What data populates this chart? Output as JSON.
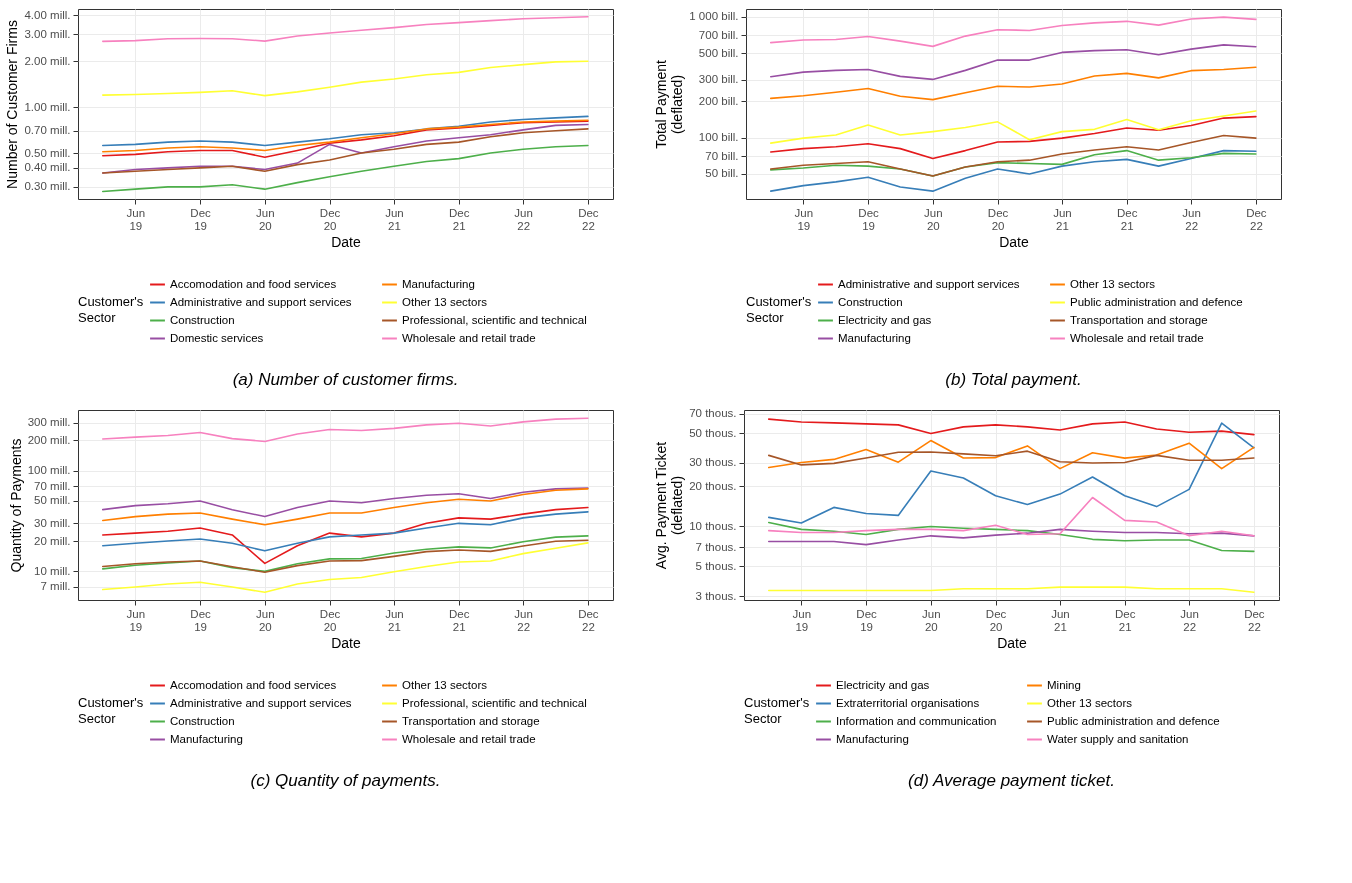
{
  "chart_data": [
    {
      "type": "line",
      "title": "(a) Number of customer firms.",
      "xlabel": "Date",
      "ylabel": "Number of Customer Firms",
      "legend_title": "Customer's\nSector",
      "log": "y",
      "grid": true,
      "legend": "bottom",
      "x": [
        "2019-03",
        "2019-06",
        "2019-09",
        "2019-12",
        "2020-03",
        "2020-06",
        "2020-09",
        "2020-12",
        "2021-03",
        "2021-06",
        "2021-09",
        "2021-12",
        "2022-03",
        "2022-06",
        "2022-09",
        "2022-12"
      ],
      "xlim": [
        "2018-12-21",
        "2023-02-10"
      ],
      "xticks": [
        {
          "value": "2019-06",
          "label": "Jun 19"
        },
        {
          "value": "2019-12",
          "label": "Dec 19"
        },
        {
          "value": "2020-06",
          "label": "Jun 20"
        },
        {
          "value": "2020-12",
          "label": "Dec 20"
        },
        {
          "value": "2021-06",
          "label": "Jun 21"
        },
        {
          "value": "2021-12",
          "label": "Dec 21"
        },
        {
          "value": "2022-06",
          "label": "Jun 22"
        },
        {
          "value": "2022-12",
          "label": "Dec 22"
        }
      ],
      "ylim": [
        0.25,
        4.4
      ],
      "yticks": [
        {
          "value": 0.3,
          "label": "0.30 mill."
        },
        {
          "value": 0.4,
          "label": "0.40 mill."
        },
        {
          "value": 0.5,
          "label": "0.50 mill."
        },
        {
          "value": 0.7,
          "label": "0.70 mill."
        },
        {
          "value": 1,
          "label": "1.00 mill."
        },
        {
          "value": 2,
          "label": "2.00 mill."
        },
        {
          "value": 3,
          "label": "3.00 mill."
        },
        {
          "value": 4,
          "label": "4.00 mill."
        }
      ],
      "series": [
        {
          "name": "Accomodation and food services",
          "color": "#e41a1c",
          "values": [
            0.48,
            0.49,
            0.51,
            0.52,
            0.52,
            0.47,
            0.52,
            0.58,
            0.61,
            0.65,
            0.71,
            0.73,
            0.76,
            0.79,
            0.8,
            0.81
          ]
        },
        {
          "name": "Administrative and support services",
          "color": "#377eb8",
          "values": [
            0.56,
            0.57,
            0.59,
            0.6,
            0.59,
            0.56,
            0.59,
            0.62,
            0.66,
            0.68,
            0.72,
            0.75,
            0.8,
            0.83,
            0.85,
            0.87
          ]
        },
        {
          "name": "Construction",
          "color": "#4daf4a",
          "values": [
            0.28,
            0.29,
            0.3,
            0.3,
            0.31,
            0.29,
            0.32,
            0.35,
            0.38,
            0.41,
            0.44,
            0.46,
            0.5,
            0.53,
            0.55,
            0.56
          ]
        },
        {
          "name": "Domestic services",
          "color": "#984ea3",
          "values": [
            0.37,
            0.39,
            0.4,
            0.41,
            0.41,
            0.39,
            0.43,
            0.57,
            0.5,
            0.55,
            0.6,
            0.63,
            0.66,
            0.71,
            0.76,
            0.77
          ]
        },
        {
          "name": "Manufacturing",
          "color": "#ff7f00",
          "values": [
            0.51,
            0.52,
            0.54,
            0.55,
            0.54,
            0.52,
            0.56,
            0.59,
            0.63,
            0.67,
            0.72,
            0.74,
            0.77,
            0.8,
            0.81,
            0.82
          ]
        },
        {
          "name": "Other 13 sectors",
          "color": "#ffff33",
          "values": [
            1.2,
            1.21,
            1.23,
            1.25,
            1.28,
            1.19,
            1.26,
            1.35,
            1.46,
            1.53,
            1.63,
            1.69,
            1.82,
            1.9,
            1.98,
            2.0
          ]
        },
        {
          "name": "Professional, scientific and technical",
          "color": "#a65628",
          "values": [
            0.37,
            0.38,
            0.39,
            0.4,
            0.41,
            0.38,
            0.42,
            0.45,
            0.5,
            0.53,
            0.57,
            0.59,
            0.64,
            0.68,
            0.7,
            0.72
          ]
        },
        {
          "name": "Wholesale and retail trade",
          "color": "#f781bf",
          "values": [
            2.7,
            2.73,
            2.81,
            2.82,
            2.81,
            2.71,
            2.93,
            3.06,
            3.19,
            3.32,
            3.48,
            3.58,
            3.69,
            3.8,
            3.86,
            3.91
          ]
        }
      ]
    },
    {
      "type": "line",
      "title": "(b) Total payment.",
      "xlabel": "Date",
      "ylabel": "Total Payment\n(deflated)",
      "legend_title": "Customer's\nSector",
      "log": "y",
      "grid": true,
      "legend": "bottom",
      "x": [
        "2019-03",
        "2019-06",
        "2019-09",
        "2019-12",
        "2020-03",
        "2020-06",
        "2020-09",
        "2020-12",
        "2021-03",
        "2021-06",
        "2021-09",
        "2021-12",
        "2022-03",
        "2022-06",
        "2022-09",
        "2022-12"
      ],
      "xlim": [
        "2018-12-21",
        "2023-02-10"
      ],
      "xticks": [
        {
          "value": "2019-06",
          "label": "Jun 19"
        },
        {
          "value": "2019-12",
          "label": "Dec 19"
        },
        {
          "value": "2020-06",
          "label": "Jun 20"
        },
        {
          "value": "2020-12",
          "label": "Dec 20"
        },
        {
          "value": "2021-06",
          "label": "Jun 21"
        },
        {
          "value": "2021-12",
          "label": "Dec 21"
        },
        {
          "value": "2022-06",
          "label": "Jun 22"
        },
        {
          "value": "2022-12",
          "label": "Dec 22"
        }
      ],
      "ylim": [
        31,
        1160
      ],
      "yticks": [
        {
          "value": 50,
          "label": "50 bill."
        },
        {
          "value": 70,
          "label": "70 bill."
        },
        {
          "value": 100,
          "label": "100 bill."
        },
        {
          "value": 200,
          "label": "200 bill."
        },
        {
          "value": 300,
          "label": "300 bill."
        },
        {
          "value": 500,
          "label": "500 bill."
        },
        {
          "value": 700,
          "label": "700 bill."
        },
        {
          "value": 1000,
          "label": "1 000 bill."
        }
      ],
      "series": [
        {
          "name": "Administrative and support services",
          "color": "#e41a1c",
          "values": [
            76,
            81,
            84,
            89,
            81,
            67,
            78,
            92,
            93,
            99,
            108,
            120,
            115,
            126,
            145,
            149
          ]
        },
        {
          "name": "Construction",
          "color": "#377eb8",
          "values": [
            36,
            40,
            43,
            47,
            39,
            36,
            46,
            55,
            50,
            58,
            63,
            66,
            58,
            67,
            78,
            77
          ]
        },
        {
          "name": "Electricity and gas",
          "color": "#4daf4a",
          "values": [
            54,
            56,
            59,
            58,
            55,
            48,
            57,
            62,
            61,
            60,
            72,
            78,
            65,
            68,
            74,
            73
          ]
        },
        {
          "name": "Manufacturing",
          "color": "#984ea3",
          "values": [
            319,
            348,
            360,
            366,
            321,
            303,
            360,
            438,
            438,
            507,
            525,
            533,
            485,
            540,
            585,
            565
          ]
        },
        {
          "name": "Other 13 sectors",
          "color": "#ff7f00",
          "values": [
            211,
            222,
            237,
            255,
            220,
            206,
            235,
            266,
            262,
            278,
            323,
            340,
            312,
            358,
            366,
            382
          ]
        },
        {
          "name": "Public administration and defence",
          "color": "#ffff33",
          "values": [
            90,
            99,
            105,
            127,
            105,
            112,
            121,
            135,
            96,
            112,
            117,
            141,
            116,
            138,
            151,
            166
          ]
        },
        {
          "name": "Transportation and storage",
          "color": "#a65628",
          "values": [
            55,
            59,
            61,
            63,
            55,
            48,
            57,
            63,
            65,
            73,
            79,
            84,
            79,
            91,
            104,
            99
          ]
        },
        {
          "name": "Wholesale and retail trade",
          "color": "#f781bf",
          "values": [
            611,
            643,
            648,
            687,
            629,
            569,
            692,
            782,
            771,
            847,
            891,
            917,
            853,
            958,
            993,
            951
          ]
        }
      ]
    },
    {
      "type": "line",
      "title": "(c) Quantity of payments.",
      "xlabel": "Date",
      "ylabel": "Quantity of Payments",
      "legend_title": "Customer's\nSector",
      "log": "y",
      "grid": true,
      "legend": "bottom",
      "x": [
        "2019-03",
        "2019-06",
        "2019-09",
        "2019-12",
        "2020-03",
        "2020-06",
        "2020-09",
        "2020-12",
        "2021-03",
        "2021-06",
        "2021-09",
        "2021-12",
        "2022-03",
        "2022-06",
        "2022-09",
        "2022-12"
      ],
      "xlim": [
        "2018-12-21",
        "2023-02-10"
      ],
      "xticks": [
        {
          "value": "2019-06",
          "label": "Jun 19"
        },
        {
          "value": "2019-12",
          "label": "Dec 19"
        },
        {
          "value": "2020-06",
          "label": "Jun 20"
        },
        {
          "value": "2020-12",
          "label": "Dec 20"
        },
        {
          "value": "2021-06",
          "label": "Jun 21"
        },
        {
          "value": "2021-12",
          "label": "Dec 21"
        },
        {
          "value": "2022-06",
          "label": "Jun 22"
        },
        {
          "value": "2022-12",
          "label": "Dec 22"
        }
      ],
      "ylim": [
        5.2,
        400
      ],
      "yticks": [
        {
          "value": 7,
          "label": "7 mill."
        },
        {
          "value": 10,
          "label": "10 mill."
        },
        {
          "value": 20,
          "label": "20 mill."
        },
        {
          "value": 30,
          "label": "30 mill."
        },
        {
          "value": 50,
          "label": "50 mill."
        },
        {
          "value": 70,
          "label": "70 mill."
        },
        {
          "value": 100,
          "label": "100 mill."
        },
        {
          "value": 200,
          "label": "200 mill."
        },
        {
          "value": 300,
          "label": "300 mill."
        }
      ],
      "series": [
        {
          "name": "Accomodation and food services",
          "color": "#e41a1c",
          "values": [
            23,
            24,
            25,
            27,
            23,
            12,
            18,
            24,
            22,
            24,
            30,
            34,
            33,
            37,
            41,
            43
          ]
        },
        {
          "name": "Administrative and support services",
          "color": "#377eb8",
          "values": [
            18,
            19,
            20,
            21,
            19,
            16,
            19,
            22,
            23,
            24,
            27,
            30,
            29,
            34,
            37,
            39
          ]
        },
        {
          "name": "Construction",
          "color": "#4daf4a",
          "values": [
            10.6,
            11.5,
            12.1,
            12.7,
            10.9,
            10.0,
            11.9,
            13.3,
            13.4,
            15.2,
            16.6,
            17.5,
            17.1,
            19.7,
            21.9,
            22.5
          ]
        },
        {
          "name": "Manufacturing",
          "color": "#984ea3",
          "values": [
            41,
            45,
            47,
            50,
            41,
            35,
            43,
            50,
            48,
            53,
            57,
            59,
            53,
            61,
            66,
            67
          ]
        },
        {
          "name": "Other 13 sectors",
          "color": "#ff7f00",
          "values": [
            32,
            35,
            37,
            38,
            33,
            29,
            33,
            38,
            38,
            43,
            48,
            52,
            50,
            58,
            64,
            66
          ]
        },
        {
          "name": "Professional, scientific and technical",
          "color": "#ffff33",
          "values": [
            6.6,
            7.0,
            7.5,
            7.8,
            7.0,
            6.2,
            7.5,
            8.3,
            8.7,
            9.9,
            11.2,
            12.4,
            12.7,
            15.0,
            17.0,
            19.2
          ]
        },
        {
          "name": "Transportation and storage",
          "color": "#a65628",
          "values": [
            11.2,
            11.9,
            12.4,
            12.7,
            11.1,
            9.8,
            11.4,
            12.7,
            12.8,
            14.1,
            15.7,
            16.3,
            15.8,
            17.9,
            19.9,
            20.4
          ]
        },
        {
          "name": "Wholesale and retail trade",
          "color": "#f781bf",
          "values": [
            206,
            215,
            223,
            239,
            208,
            195,
            231,
            256,
            250,
            263,
            285,
            295,
            277,
            305,
            325,
            331
          ]
        }
      ]
    },
    {
      "type": "line",
      "title": "(d) Average payment ticket.",
      "xlabel": "Date",
      "ylabel": "Avg. Payment Ticket\n(deflated)",
      "legend_title": "Customer's\nSector",
      "log": "y",
      "grid": true,
      "legend": "bottom",
      "x": [
        "2019-03",
        "2019-06",
        "2019-09",
        "2019-12",
        "2020-03",
        "2020-06",
        "2020-09",
        "2020-12",
        "2021-03",
        "2021-06",
        "2021-09",
        "2021-12",
        "2022-03",
        "2022-06",
        "2022-09",
        "2022-12"
      ],
      "xlim": [
        "2018-12-21",
        "2023-02-10"
      ],
      "xticks": [
        {
          "value": "2019-06",
          "label": "Jun 19"
        },
        {
          "value": "2019-12",
          "label": "Dec 19"
        },
        {
          "value": "2020-06",
          "label": "Jun 20"
        },
        {
          "value": "2020-12",
          "label": "Dec 20"
        },
        {
          "value": "2021-06",
          "label": "Jun 21"
        },
        {
          "value": "2021-12",
          "label": "Dec 21"
        },
        {
          "value": "2022-06",
          "label": "Jun 22"
        },
        {
          "value": "2022-12",
          "label": "Dec 22"
        }
      ],
      "ylim": [
        2.8,
        75
      ],
      "yticks": [
        {
          "value": 3,
          "label": "3 thous."
        },
        {
          "value": 5,
          "label": "5 thous."
        },
        {
          "value": 7,
          "label": "7 thous."
        },
        {
          "value": 10,
          "label": "10 thous."
        },
        {
          "value": 20,
          "label": "20 thous."
        },
        {
          "value": 30,
          "label": "30 thous."
        },
        {
          "value": 50,
          "label": "50 thous."
        },
        {
          "value": 70,
          "label": "70 thous."
        }
      ],
      "series": [
        {
          "name": "Electricity and gas",
          "color": "#e41a1c",
          "values": [
            64,
            61,
            60,
            59,
            58,
            50,
            56,
            58,
            56,
            53,
            59,
            61,
            54,
            51,
            52,
            49
          ]
        },
        {
          "name": "Extraterritorial organisations",
          "color": "#377eb8",
          "values": [
            11.7,
            10.6,
            13.9,
            12.5,
            12.1,
            26.1,
            23.1,
            17.0,
            14.6,
            17.5,
            23.5,
            17.0,
            14.1,
            19.0,
            59.8,
            39.0
          ]
        },
        {
          "name": "Information and communication",
          "color": "#4daf4a",
          "values": [
            10.7,
            9.5,
            9.2,
            8.7,
            9.5,
            10.0,
            9.7,
            9.5,
            9.3,
            8.7,
            8.0,
            7.8,
            7.9,
            7.9,
            6.6,
            6.5
          ]
        },
        {
          "name": "Manufacturing",
          "color": "#984ea3",
          "values": [
            7.7,
            7.7,
            7.7,
            7.3,
            7.9,
            8.5,
            8.2,
            8.6,
            8.9,
            9.5,
            9.2,
            9.0,
            9.0,
            8.8,
            8.9,
            8.5
          ]
        },
        {
          "name": "Mining",
          "color": "#ff7f00",
          "values": [
            27.7,
            30.2,
            31.9,
            37.8,
            30.4,
            44.2,
            32.7,
            32.9,
            40.3,
            27.2,
            35.8,
            32.6,
            34.4,
            42.2,
            27.2,
            39.3
          ]
        },
        {
          "name": "Other 13 sectors",
          "color": "#ffff33",
          "values": [
            3.3,
            3.3,
            3.3,
            3.3,
            3.3,
            3.3,
            3.4,
            3.4,
            3.4,
            3.5,
            3.5,
            3.5,
            3.4,
            3.4,
            3.4,
            3.2
          ]
        },
        {
          "name": "Public administration and defence",
          "color": "#a65628",
          "values": [
            34.2,
            29.0,
            29.8,
            32.7,
            36.1,
            36.3,
            35.1,
            34.0,
            36.8,
            30.6,
            30.0,
            30.2,
            34.2,
            31.4,
            31.4,
            32.7
          ]
        },
        {
          "name": "Water supply and sanitation",
          "color": "#f781bf",
          "values": [
            9.3,
            9.0,
            9.0,
            9.3,
            9.5,
            9.5,
            9.3,
            10.2,
            8.7,
            8.8,
            16.5,
            11.1,
            10.8,
            8.5,
            9.2,
            8.5
          ]
        }
      ]
    }
  ]
}
